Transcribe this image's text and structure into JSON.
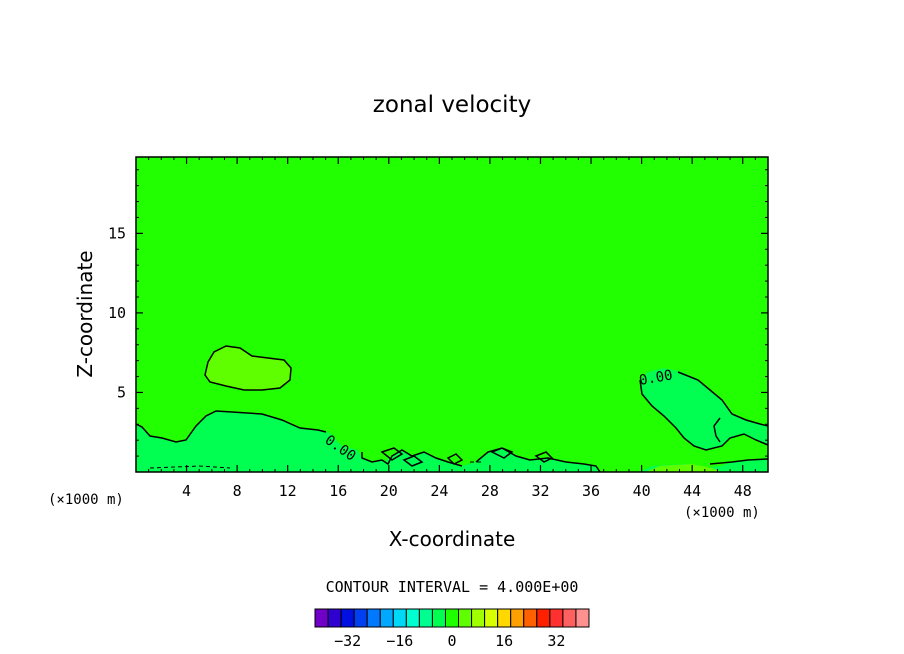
{
  "chart_data": {
    "type": "contour",
    "title": "zonal velocity",
    "xlabel": "X-coordinate",
    "ylabel": "Z-coordinate",
    "x_unit": "(×1000 m)",
    "xlim": [
      0,
      50
    ],
    "ylim": [
      0,
      19.8
    ],
    "x_ticks": [
      4,
      8,
      12,
      16,
      20,
      24,
      28,
      32,
      36,
      40,
      44,
      48
    ],
    "y_ticks": [
      5,
      10,
      15
    ],
    "background_level_color": "#22ff00",
    "contour_label": "0.00",
    "contour_interval_text": "CONTOUR INTERVAL = 4.000E+00",
    "colorbar": {
      "colors": [
        "#7000c8",
        "#3000d0",
        "#0010e0",
        "#0040f0",
        "#0078ff",
        "#00a8ff",
        "#00d8f8",
        "#00ffd0",
        "#00ff90",
        "#00ff50",
        "#20ff00",
        "#60ff00",
        "#a0ff00",
        "#d8ff00",
        "#ffd800",
        "#ffa000",
        "#ff6000",
        "#ff2000",
        "#ff3030",
        "#ff6060",
        "#ff9090"
      ],
      "tick_labels": [
        "-32",
        "-16",
        "0",
        "16",
        "32"
      ],
      "tick_values": [
        -32,
        -16,
        0,
        16,
        32
      ],
      "vmin": -42,
      "vmax": 42
    }
  }
}
